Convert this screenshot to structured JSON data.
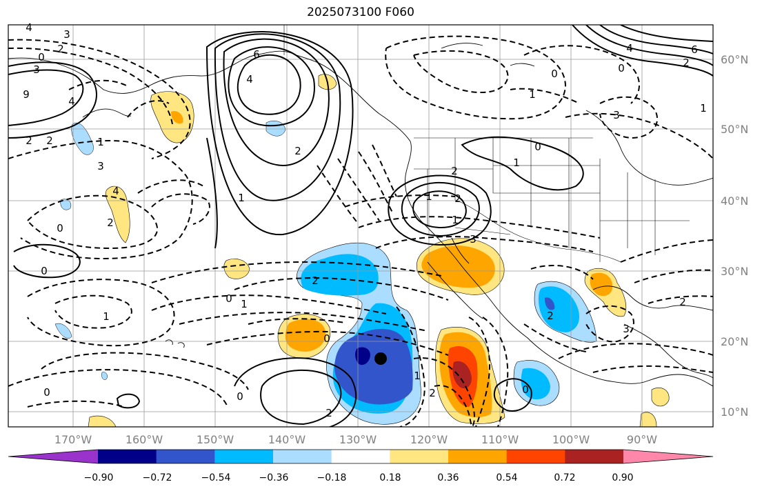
{
  "title": "2025073100 F060",
  "latitude_labels": [
    "60°N",
    "50°N",
    "40°N",
    "30°N",
    "20°N",
    "10°N"
  ],
  "longitude_labels": [
    "170°W",
    "160°W",
    "150°W",
    "140°W",
    "130°W",
    "120°W",
    "110°W",
    "100°W",
    "90°W"
  ],
  "colorbar": {
    "tick_labels": [
      "−0.90",
      "−0.72",
      "−0.54",
      "−0.36",
      "−0.18",
      "0.18",
      "0.36",
      "0.54",
      "0.72",
      "0.90"
    ],
    "colors": [
      "#9933cc",
      "#000088",
      "#3355cc",
      "#00bbff",
      "#aaddff",
      "#ffffff",
      "#ffe680",
      "#ffa500",
      "#ff4400",
      "#aa2222",
      "#ff88aa"
    ]
  },
  "fill_colors": {
    "light_blue": "#aaddff",
    "cyan": "#00bbff",
    "blue": "#3355cc",
    "navy": "#000088",
    "light_yellow": "#ffe680",
    "orange": "#ffa500",
    "red_orange": "#ff4400",
    "dark_red": "#aa2222"
  },
  "contour_labels": [
    "3",
    "4",
    "0",
    "2",
    "3",
    "9",
    "4",
    "2",
    "2",
    "1",
    "3",
    "4",
    "2",
    "0",
    "0",
    "6",
    "4",
    "2",
    "1",
    "0",
    "1",
    "2",
    "2",
    "0",
    "0",
    "1",
    "1",
    "2",
    "1",
    "0",
    "2",
    "1",
    "3",
    "3",
    "4",
    "6",
    "0",
    "2",
    "0",
    "1",
    "2",
    "0",
    "3",
    "2",
    "1",
    "0",
    "1",
    "2"
  ],
  "marker": "storm-center"
}
